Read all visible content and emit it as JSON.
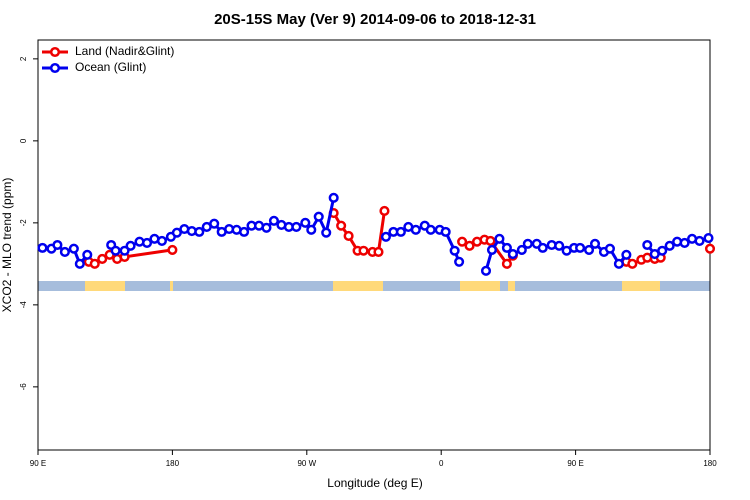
{
  "chart_data": {
    "type": "line",
    "title": "20S-15S May (Ver 9)   2014-09-06 to 2018-12-31",
    "xlabel": "Longitude (deg E)",
    "ylabel": "XCO2 - MLO trend (ppm)",
    "xlim": [
      90,
      540
    ],
    "xticks": [
      {
        "value": 90,
        "label": "90 E"
      },
      {
        "value": 180,
        "label": "180"
      },
      {
        "value": 270,
        "label": "90 W"
      },
      {
        "value": 360,
        "label": "0"
      },
      {
        "value": 450,
        "label": "90 E"
      },
      {
        "value": 540,
        "label": "180"
      }
    ],
    "ylim": [
      -7.54,
      2.46
    ],
    "yticks": [
      2,
      0,
      -2,
      -4,
      -6
    ],
    "legend": "top-left",
    "series": [
      {
        "name": "Land (Nadir&Glint)",
        "color": "#ee0000",
        "x": [
          124,
          128,
          133,
          138,
          143,
          148,
          180,
          null,
          288,
          293,
          298,
          304,
          308,
          314,
          318,
          322,
          null,
          374,
          379,
          384,
          389,
          393,
          404,
          408,
          null,
          484,
          488,
          494,
          498,
          503,
          507,
          null,
          540
        ],
        "values": [
          -2.95,
          -3.0,
          -2.88,
          -2.78,
          -2.88,
          -2.83,
          -2.66,
          null,
          -1.76,
          -2.07,
          -2.32,
          -2.68,
          -2.68,
          -2.71,
          -2.71,
          -1.71,
          null,
          -2.46,
          -2.56,
          -2.46,
          -2.41,
          -2.44,
          -3.0,
          -2.8,
          null,
          -2.95,
          -3.0,
          -2.9,
          -2.85,
          -2.88,
          -2.85,
          null,
          -2.63
        ]
      },
      {
        "name": "Ocean (Glint)",
        "color": "#0000ee",
        "x": [
          93,
          99,
          103,
          108,
          114,
          118,
          123,
          null,
          139,
          142,
          148,
          152,
          158,
          163,
          168,
          173,
          179,
          183,
          188,
          193,
          198,
          203,
          208,
          213,
          218,
          223,
          228,
          233,
          238,
          243,
          248,
          253,
          258,
          263,
          269,
          273,
          278,
          283,
          288,
          null,
          323,
          328,
          333,
          338,
          343,
          349,
          353,
          359,
          363,
          369,
          372,
          null,
          390,
          394,
          399,
          404,
          408,
          414,
          418,
          424,
          428,
          434,
          439,
          444,
          449,
          453,
          459,
          463,
          469,
          473,
          479,
          484,
          null,
          498,
          503,
          508,
          513,
          518,
          523,
          528,
          533,
          539
        ],
        "values": [
          -2.61,
          -2.63,
          -2.54,
          -2.71,
          -2.63,
          -3.0,
          -2.78,
          null,
          -2.54,
          -2.68,
          -2.68,
          -2.56,
          -2.46,
          -2.49,
          -2.39,
          -2.44,
          -2.34,
          -2.24,
          -2.15,
          -2.2,
          -2.22,
          -2.1,
          -2.02,
          -2.22,
          -2.15,
          -2.17,
          -2.22,
          -2.07,
          -2.07,
          -2.12,
          -1.95,
          -2.05,
          -2.1,
          -2.1,
          -2.0,
          -2.17,
          -1.85,
          -2.24,
          -1.39,
          null,
          -2.34,
          -2.22,
          -2.22,
          -2.1,
          -2.17,
          -2.07,
          -2.17,
          -2.17,
          -2.22,
          -2.68,
          -2.95,
          null,
          -3.17,
          -2.66,
          -2.39,
          -2.61,
          -2.76,
          -2.66,
          -2.51,
          -2.51,
          -2.61,
          -2.54,
          -2.56,
          -2.68,
          -2.61,
          -2.61,
          -2.66,
          -2.51,
          -2.71,
          -2.63,
          -3.0,
          -2.78,
          null,
          -2.54,
          -2.76,
          -2.68,
          -2.56,
          -2.46,
          -2.49,
          -2.39,
          -2.44,
          -2.37
        ]
      }
    ]
  }
}
